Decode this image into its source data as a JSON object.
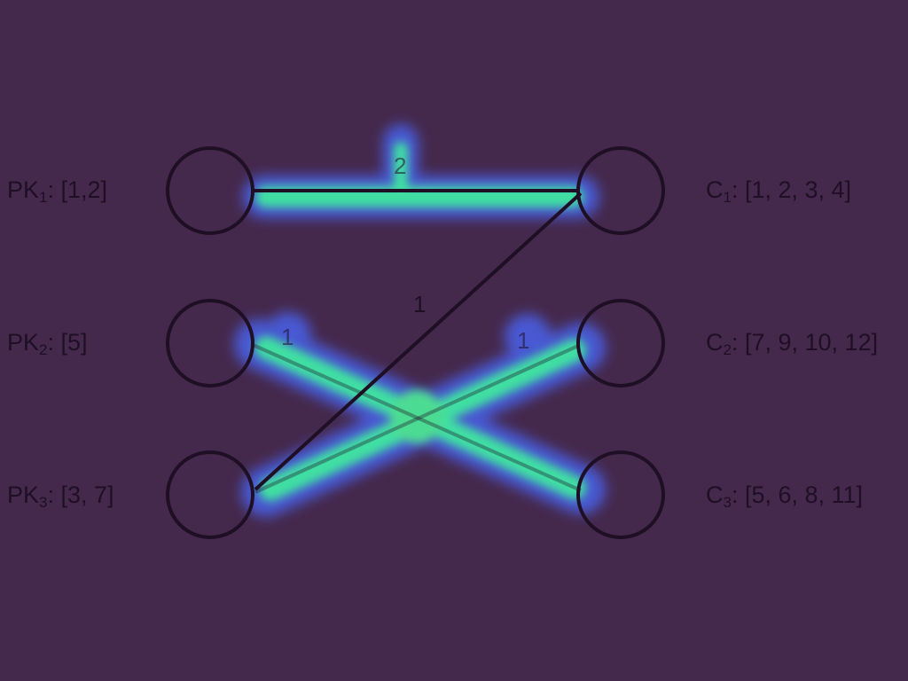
{
  "producers": [
    {
      "id": "pk1",
      "prefix": "PK",
      "sub": "1",
      "values": ": [1,2]"
    },
    {
      "id": "pk2",
      "prefix": "PK",
      "sub": "2",
      "values": ": [5]"
    },
    {
      "id": "pk3",
      "prefix": "PK",
      "sub": "3",
      "values": ": [3, 7]"
    }
  ],
  "consumers": [
    {
      "id": "c1",
      "prefix": "C",
      "sub": "1",
      "values": ": [1, 2, 3, 4]"
    },
    {
      "id": "c2",
      "prefix": "C",
      "sub": "2",
      "values": ": [7, 9, 10, 12]"
    },
    {
      "id": "c3",
      "prefix": "C",
      "sub": "3",
      "values": ": [5, 6, 8, 11]"
    }
  ],
  "edges": [
    {
      "from": "PK1",
      "to": "C1",
      "weight": "2"
    },
    {
      "from": "PK3",
      "to": "C1",
      "weight": "1"
    },
    {
      "from": "PK2",
      "to": "C3",
      "weight": "1"
    },
    {
      "from": "PK3",
      "to": "C2",
      "weight": "1"
    }
  ],
  "colors": {
    "background": "#45294d",
    "stroke": "#1e0f24",
    "heat_core": "#3fe6a0",
    "heat_edge": "#3a6dd8"
  }
}
